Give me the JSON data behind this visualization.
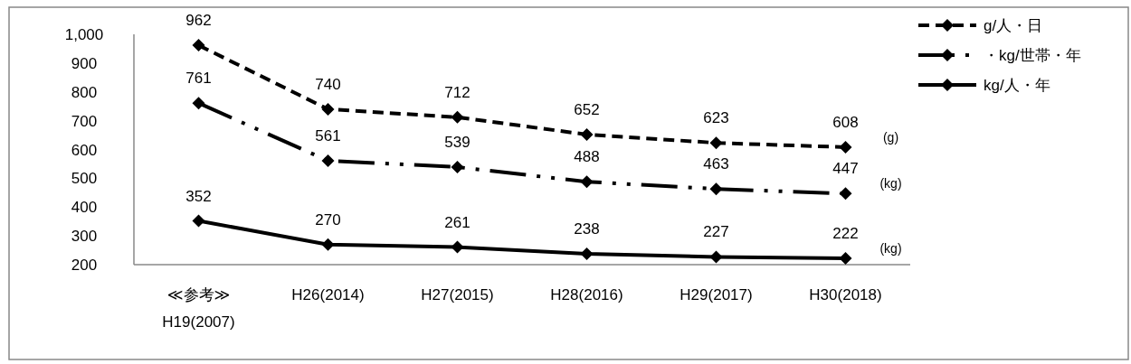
{
  "chart_data": {
    "type": "line",
    "categories": [
      "≪参考≫\nH19(2007)",
      "H26(2014)",
      "H27(2015)",
      "H28(2016)",
      "H29(2017)",
      "H30(2018)"
    ],
    "series": [
      {
        "name": "g/人・日",
        "color": "#000000",
        "line_style": "dashed",
        "values": [
          962,
          740,
          712,
          652,
          623,
          608
        ]
      },
      {
        "name": "・kg/世帯・年",
        "color": "#000000",
        "line_style": "dashdot",
        "values": [
          761,
          561,
          539,
          488,
          463,
          447
        ]
      },
      {
        "name": "kg/人・年",
        "color": "#000000",
        "line_style": "solid",
        "values": [
          352,
          270,
          261,
          238,
          227,
          222
        ]
      }
    ],
    "ylim": [
      200,
      1000
    ],
    "yticks": [
      200,
      300,
      400,
      500,
      600,
      700,
      800,
      900,
      {
        "value": 1000,
        "label": "1,000"
      }
    ],
    "marker": "diamond",
    "data_labels": true,
    "grid": false,
    "legend": "top right",
    "annotations": [
      {
        "text": "(g)",
        "x": "H30(2018)",
        "y": 608
      },
      {
        "text": "(kg)",
        "x": "H30(2018)",
        "y": 447
      },
      {
        "text": "(kg)",
        "x": "H30(2018)",
        "y": 222
      }
    ]
  }
}
